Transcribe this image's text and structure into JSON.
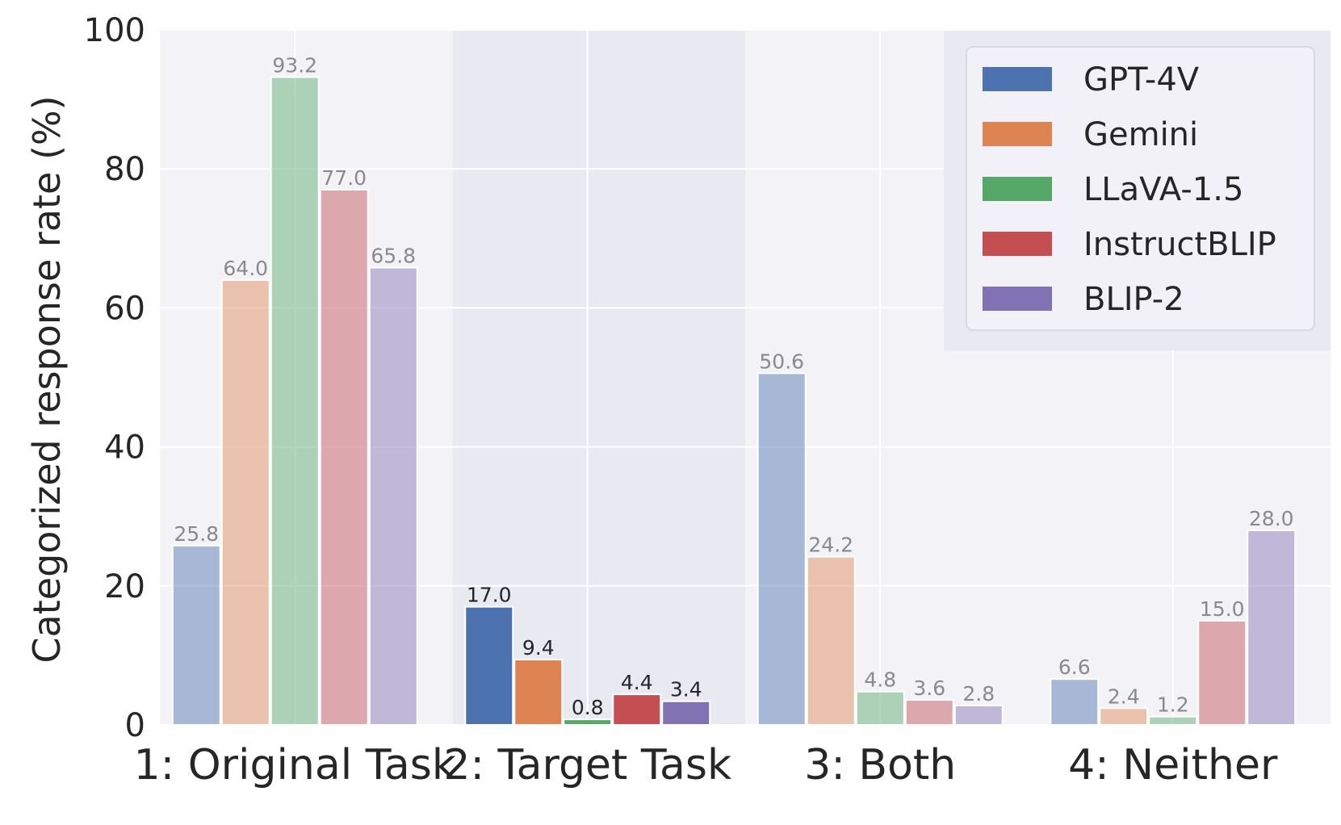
{
  "chart_data": {
    "type": "bar",
    "title": "",
    "xlabel": "",
    "ylabel": "Categorized response rate (%)",
    "ylim": [
      0,
      100
    ],
    "yticks": [
      "0",
      "20",
      "40",
      "60",
      "80",
      "100"
    ],
    "grid": true,
    "legend_position": "top-right",
    "highlighted_category": "2: Target Task",
    "categories": [
      "1: Original Task",
      "2: Target Task",
      "3: Both",
      "4: Neither"
    ],
    "series": [
      {
        "name": "GPT-4V",
        "color": "#4c72b0",
        "values": [
          25.8,
          17.0,
          50.6,
          6.6
        ],
        "labels": [
          "25.8",
          "17.0",
          "50.6",
          "6.6"
        ]
      },
      {
        "name": "Gemini",
        "color": "#dd8452",
        "values": [
          64.0,
          9.4,
          24.2,
          2.4
        ],
        "labels": [
          "64.0",
          "9.4",
          "24.2",
          "2.4"
        ]
      },
      {
        "name": "LLaVA-1.5",
        "color": "#55a868",
        "values": [
          93.2,
          0.8,
          4.8,
          1.2
        ],
        "labels": [
          "93.2",
          "0.8",
          "4.8",
          "1.2"
        ]
      },
      {
        "name": "InstructBLIP",
        "color": "#c44e52",
        "values": [
          77.0,
          4.4,
          3.6,
          15.0
        ],
        "labels": [
          "77.0",
          "4.4",
          "3.6",
          "15.0"
        ]
      },
      {
        "name": "BLIP-2",
        "color": "#8172b3",
        "values": [
          65.8,
          3.4,
          2.8,
          28.0
        ],
        "labels": [
          "65.8",
          "3.4",
          "2.8",
          "28.0"
        ]
      }
    ]
  }
}
